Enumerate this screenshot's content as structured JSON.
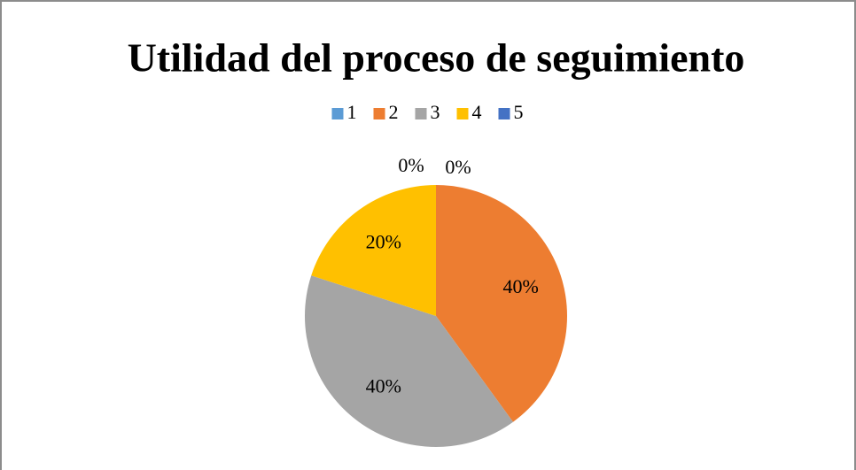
{
  "chart_data": {
    "type": "pie",
    "title": "Utilidad del proceso de seguimiento",
    "categories": [
      "1",
      "2",
      "3",
      "4",
      "5"
    ],
    "values": [
      0,
      40,
      40,
      20,
      0
    ],
    "value_labels": [
      "0%",
      "40%",
      "40%",
      "20%",
      "0%"
    ],
    "colors": [
      "#5B9BD5",
      "#ED7D31",
      "#A5A5A5",
      "#FFC000",
      "#4472C4"
    ],
    "legend": "top"
  }
}
